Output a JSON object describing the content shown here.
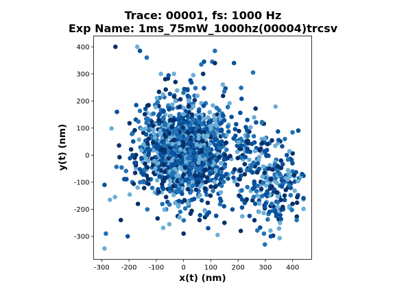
{
  "chart_data": {
    "type": "scatter",
    "title_lines": [
      "Trace: 00001, fs: 1000 Hz",
      "Exp Name: 1ms_75mW_1000hz(00004)trcsv"
    ],
    "xlabel": "x(t) (nm)",
    "ylabel": "y(t) (nm)",
    "xlim": [
      -330,
      470
    ],
    "ylim": [
      -385,
      440
    ],
    "xticks": [
      -300,
      -200,
      -100,
      0,
      100,
      200,
      300,
      400
    ],
    "yticks": [
      -300,
      -200,
      -100,
      0,
      100,
      200,
      300,
      400
    ],
    "grid": false,
    "colormap": [
      "#6baed6",
      "#2171b5",
      "#08519c",
      "#08306b"
    ],
    "clusters": [
      {
        "cx": 0,
        "cy": 20,
        "sx": 85,
        "sy": 95,
        "n": 1300
      },
      {
        "cx": 320,
        "cy": -110,
        "sx": 55,
        "sy": 80,
        "n": 230
      },
      {
        "cx": 230,
        "cy": 40,
        "sx": 60,
        "sy": 50,
        "n": 80
      }
    ],
    "points": [
      [
        -250,
        400
      ],
      [
        -170,
        400
      ],
      [
        -160,
        385
      ],
      [
        -135,
        360
      ],
      [
        115,
        385
      ],
      [
        75,
        345
      ],
      [
        105,
        345
      ],
      [
        115,
        340
      ],
      [
        65,
        335
      ],
      [
        185,
        340
      ],
      [
        255,
        305
      ],
      [
        -290,
        -110
      ],
      [
        -285,
        -290
      ],
      [
        -290,
        -345
      ],
      [
        -205,
        -300
      ],
      [
        -230,
        -240
      ],
      [
        -270,
        -165
      ],
      [
        0,
        -290
      ],
      [
        125,
        -295
      ],
      [
        90,
        -270
      ],
      [
        295,
        -290
      ],
      [
        320,
        -300
      ],
      [
        210,
        -280
      ],
      [
        415,
        -240
      ],
      [
        435,
        -70
      ],
      [
        400,
        -180
      ],
      [
        150,
        -250
      ]
    ]
  }
}
